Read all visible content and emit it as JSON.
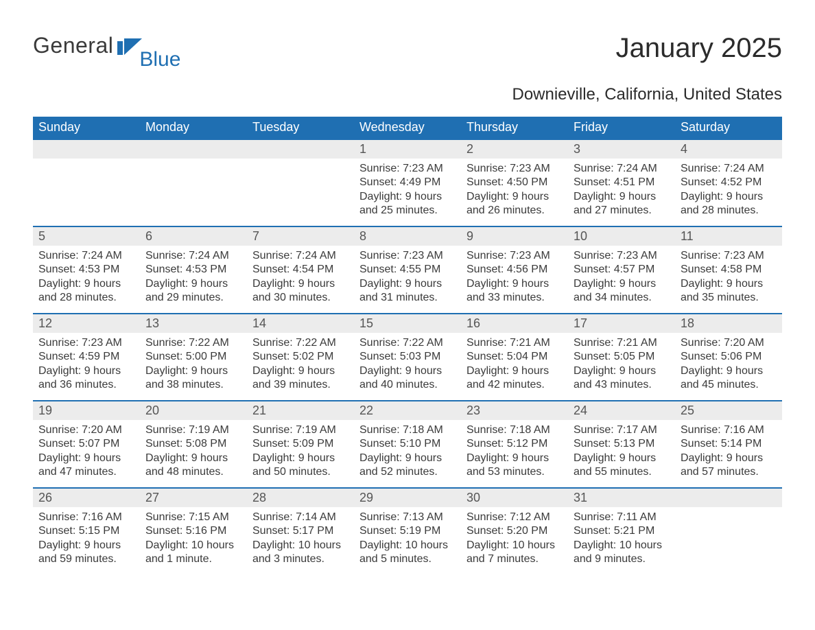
{
  "logo": {
    "text1": "General",
    "text2": "Blue",
    "mark_color": "#1f6fb2"
  },
  "title": "January 2025",
  "subtitle": "Downieville, California, United States",
  "colors": {
    "header_bg": "#1f6fb2",
    "header_text": "#ffffff",
    "day_number_bg": "#ececec",
    "day_number_text": "#555555",
    "body_text": "#3a3a3a",
    "row_border": "#1f6fb2"
  },
  "typography": {
    "title_fontsize": 40,
    "subtitle_fontsize": 24,
    "weekday_fontsize": 18,
    "day_number_fontsize": 18,
    "day_body_fontsize": 16
  },
  "layout": {
    "columns": 7,
    "rows": 5,
    "cell_min_height": 125
  },
  "weekdays": [
    "Sunday",
    "Monday",
    "Tuesday",
    "Wednesday",
    "Thursday",
    "Friday",
    "Saturday"
  ],
  "weeks": [
    [
      {
        "blank": true
      },
      {
        "blank": true
      },
      {
        "blank": true
      },
      {
        "day": "1",
        "sunrise": "Sunrise: 7:23 AM",
        "sunset": "Sunset: 4:49 PM",
        "daylight1": "Daylight: 9 hours",
        "daylight2": "and 25 minutes."
      },
      {
        "day": "2",
        "sunrise": "Sunrise: 7:23 AM",
        "sunset": "Sunset: 4:50 PM",
        "daylight1": "Daylight: 9 hours",
        "daylight2": "and 26 minutes."
      },
      {
        "day": "3",
        "sunrise": "Sunrise: 7:24 AM",
        "sunset": "Sunset: 4:51 PM",
        "daylight1": "Daylight: 9 hours",
        "daylight2": "and 27 minutes."
      },
      {
        "day": "4",
        "sunrise": "Sunrise: 7:24 AM",
        "sunset": "Sunset: 4:52 PM",
        "daylight1": "Daylight: 9 hours",
        "daylight2": "and 28 minutes."
      }
    ],
    [
      {
        "day": "5",
        "sunrise": "Sunrise: 7:24 AM",
        "sunset": "Sunset: 4:53 PM",
        "daylight1": "Daylight: 9 hours",
        "daylight2": "and 28 minutes."
      },
      {
        "day": "6",
        "sunrise": "Sunrise: 7:24 AM",
        "sunset": "Sunset: 4:53 PM",
        "daylight1": "Daylight: 9 hours",
        "daylight2": "and 29 minutes."
      },
      {
        "day": "7",
        "sunrise": "Sunrise: 7:24 AM",
        "sunset": "Sunset: 4:54 PM",
        "daylight1": "Daylight: 9 hours",
        "daylight2": "and 30 minutes."
      },
      {
        "day": "8",
        "sunrise": "Sunrise: 7:23 AM",
        "sunset": "Sunset: 4:55 PM",
        "daylight1": "Daylight: 9 hours",
        "daylight2": "and 31 minutes."
      },
      {
        "day": "9",
        "sunrise": "Sunrise: 7:23 AM",
        "sunset": "Sunset: 4:56 PM",
        "daylight1": "Daylight: 9 hours",
        "daylight2": "and 33 minutes."
      },
      {
        "day": "10",
        "sunrise": "Sunrise: 7:23 AM",
        "sunset": "Sunset: 4:57 PM",
        "daylight1": "Daylight: 9 hours",
        "daylight2": "and 34 minutes."
      },
      {
        "day": "11",
        "sunrise": "Sunrise: 7:23 AM",
        "sunset": "Sunset: 4:58 PM",
        "daylight1": "Daylight: 9 hours",
        "daylight2": "and 35 minutes."
      }
    ],
    [
      {
        "day": "12",
        "sunrise": "Sunrise: 7:23 AM",
        "sunset": "Sunset: 4:59 PM",
        "daylight1": "Daylight: 9 hours",
        "daylight2": "and 36 minutes."
      },
      {
        "day": "13",
        "sunrise": "Sunrise: 7:22 AM",
        "sunset": "Sunset: 5:00 PM",
        "daylight1": "Daylight: 9 hours",
        "daylight2": "and 38 minutes."
      },
      {
        "day": "14",
        "sunrise": "Sunrise: 7:22 AM",
        "sunset": "Sunset: 5:02 PM",
        "daylight1": "Daylight: 9 hours",
        "daylight2": "and 39 minutes."
      },
      {
        "day": "15",
        "sunrise": "Sunrise: 7:22 AM",
        "sunset": "Sunset: 5:03 PM",
        "daylight1": "Daylight: 9 hours",
        "daylight2": "and 40 minutes."
      },
      {
        "day": "16",
        "sunrise": "Sunrise: 7:21 AM",
        "sunset": "Sunset: 5:04 PM",
        "daylight1": "Daylight: 9 hours",
        "daylight2": "and 42 minutes."
      },
      {
        "day": "17",
        "sunrise": "Sunrise: 7:21 AM",
        "sunset": "Sunset: 5:05 PM",
        "daylight1": "Daylight: 9 hours",
        "daylight2": "and 43 minutes."
      },
      {
        "day": "18",
        "sunrise": "Sunrise: 7:20 AM",
        "sunset": "Sunset: 5:06 PM",
        "daylight1": "Daylight: 9 hours",
        "daylight2": "and 45 minutes."
      }
    ],
    [
      {
        "day": "19",
        "sunrise": "Sunrise: 7:20 AM",
        "sunset": "Sunset: 5:07 PM",
        "daylight1": "Daylight: 9 hours",
        "daylight2": "and 47 minutes."
      },
      {
        "day": "20",
        "sunrise": "Sunrise: 7:19 AM",
        "sunset": "Sunset: 5:08 PM",
        "daylight1": "Daylight: 9 hours",
        "daylight2": "and 48 minutes."
      },
      {
        "day": "21",
        "sunrise": "Sunrise: 7:19 AM",
        "sunset": "Sunset: 5:09 PM",
        "daylight1": "Daylight: 9 hours",
        "daylight2": "and 50 minutes."
      },
      {
        "day": "22",
        "sunrise": "Sunrise: 7:18 AM",
        "sunset": "Sunset: 5:10 PM",
        "daylight1": "Daylight: 9 hours",
        "daylight2": "and 52 minutes."
      },
      {
        "day": "23",
        "sunrise": "Sunrise: 7:18 AM",
        "sunset": "Sunset: 5:12 PM",
        "daylight1": "Daylight: 9 hours",
        "daylight2": "and 53 minutes."
      },
      {
        "day": "24",
        "sunrise": "Sunrise: 7:17 AM",
        "sunset": "Sunset: 5:13 PM",
        "daylight1": "Daylight: 9 hours",
        "daylight2": "and 55 minutes."
      },
      {
        "day": "25",
        "sunrise": "Sunrise: 7:16 AM",
        "sunset": "Sunset: 5:14 PM",
        "daylight1": "Daylight: 9 hours",
        "daylight2": "and 57 minutes."
      }
    ],
    [
      {
        "day": "26",
        "sunrise": "Sunrise: 7:16 AM",
        "sunset": "Sunset: 5:15 PM",
        "daylight1": "Daylight: 9 hours",
        "daylight2": "and 59 minutes."
      },
      {
        "day": "27",
        "sunrise": "Sunrise: 7:15 AM",
        "sunset": "Sunset: 5:16 PM",
        "daylight1": "Daylight: 10 hours",
        "daylight2": "and 1 minute."
      },
      {
        "day": "28",
        "sunrise": "Sunrise: 7:14 AM",
        "sunset": "Sunset: 5:17 PM",
        "daylight1": "Daylight: 10 hours",
        "daylight2": "and 3 minutes."
      },
      {
        "day": "29",
        "sunrise": "Sunrise: 7:13 AM",
        "sunset": "Sunset: 5:19 PM",
        "daylight1": "Daylight: 10 hours",
        "daylight2": "and 5 minutes."
      },
      {
        "day": "30",
        "sunrise": "Sunrise: 7:12 AM",
        "sunset": "Sunset: 5:20 PM",
        "daylight1": "Daylight: 10 hours",
        "daylight2": "and 7 minutes."
      },
      {
        "day": "31",
        "sunrise": "Sunrise: 7:11 AM",
        "sunset": "Sunset: 5:21 PM",
        "daylight1": "Daylight: 10 hours",
        "daylight2": "and 9 minutes."
      },
      {
        "blank": true
      }
    ]
  ]
}
